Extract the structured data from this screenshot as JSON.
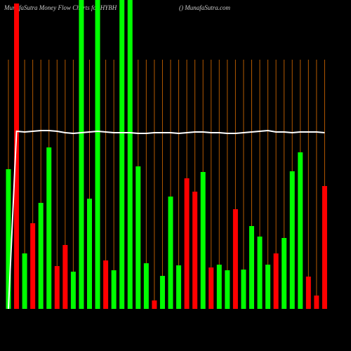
{
  "chart_data": {
    "type": "bar",
    "title": "MunafaSutra  Money Flow  Charts for HYBH",
    "subtitle": "() MunafaSutra.com",
    "categories": [
      null,
      null,
      null,
      null,
      null,
      null,
      null,
      null,
      null,
      null,
      null,
      null,
      null,
      null,
      null,
      null,
      null,
      null,
      null,
      null,
      null,
      null,
      null,
      null,
      null,
      null,
      null,
      null,
      null,
      null,
      null,
      null,
      null,
      null,
      null,
      null,
      null,
      null,
      null,
      null
    ],
    "values": [
      199,
      435,
      79,
      122,
      151,
      230,
      61,
      91,
      53,
      440,
      157,
      440,
      69,
      55,
      440,
      440,
      203,
      65,
      12,
      47,
      160,
      62,
      186,
      167,
      195,
      59,
      63,
      55,
      142,
      56,
      118,
      103,
      63,
      79,
      101,
      196,
      223,
      46,
      19,
      175
    ],
    "colors": [
      "#00ff00",
      "#ff0000",
      "#00ff00",
      "#ff0000",
      "#00ff00",
      "#00ff00",
      "#ff0000",
      "#ff0000",
      "#00ff00",
      "#00ff00",
      "#00ff00",
      "#00ff00",
      "#ff0000",
      "#00ff00",
      "#00ff00",
      "#00ff00",
      "#00ff00",
      "#00ff00",
      "#ff0000",
      "#00ff00",
      "#00ff00",
      "#00ff00",
      "#ff0000",
      "#ff0000",
      "#00ff00",
      "#ff0000",
      "#00ff00",
      "#00ff00",
      "#ff0000",
      "#00ff00",
      "#00ff00",
      "#00ff00",
      "#00ff00",
      "#ff0000",
      "#00ff00",
      "#00ff00",
      "#00ff00",
      "#ff0000",
      "#ff0000",
      "#ff0000"
    ],
    "line": {
      "color": "#ffffff",
      "values": [
        0,
        253,
        252,
        253,
        254,
        254,
        253,
        251,
        250,
        251,
        252,
        253,
        252,
        251,
        251,
        251,
        250,
        250,
        251,
        251,
        251,
        250,
        251,
        252,
        252,
        251,
        251,
        250,
        250,
        251,
        252,
        253,
        254,
        252,
        252,
        251,
        252,
        252,
        252,
        251
      ]
    },
    "ylim": [
      0,
      440
    ]
  }
}
